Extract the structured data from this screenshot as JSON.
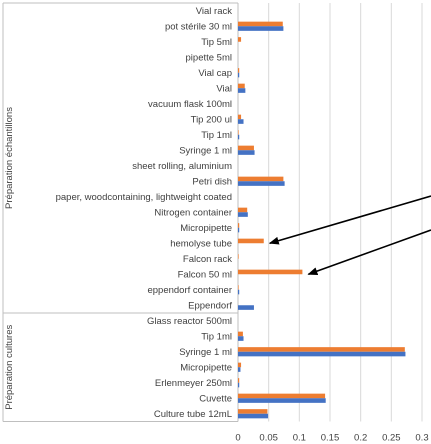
{
  "chart_data": {
    "type": "bar",
    "orientation": "horizontal",
    "title": "",
    "xlabel": "",
    "ylabel": "",
    "xlim": [
      0,
      0.3
    ],
    "xticks": [
      "0",
      "0.05",
      "0.1",
      "0.15",
      "0.2",
      "0.25",
      "0.3"
    ],
    "grid": true,
    "legend": "none",
    "groups": [
      {
        "name": "Préparation échantillons",
        "categories": [
          "Vial rack",
          "pot stérile 30 ml",
          "Tip 5ml",
          "pipette 5ml",
          "Vial cap",
          "Vial",
          "vacuum flask 100ml",
          "Tip 200 ul",
          "Tip 1ml",
          "Syringe 1 ml",
          "sheet rolling, aluminium",
          "Petri dish",
          "paper, woodcontaining, lightweight coated",
          "Nitrogen container",
          "Micropipette",
          "hemolyse tube",
          "Falcon rack",
          "Falcon 50 ml",
          "eppendorf container",
          "Eppendorf"
        ]
      },
      {
        "name": "Préparation cultures",
        "categories": [
          "Glass reactor 500ml",
          "Tip 1ml",
          "Syringe 1 ml",
          "Micropipette",
          "Erlenmeyer 250ml",
          "Cuvette",
          "Culture tube 12mL"
        ]
      }
    ],
    "series": [
      {
        "color": "#ed7d31",
        "values": [
          0,
          0.073,
          0.005,
          0,
          0.002,
          0.011,
          0,
          0.005,
          0.001,
          0.026,
          0,
          0.074,
          0,
          0.015,
          0.002,
          0.042,
          0.001,
          0.105,
          0.001,
          0,
          0,
          0.008,
          0.272,
          0.005,
          0.002,
          0.142,
          0.048
        ]
      },
      {
        "color": "#4472c4",
        "values": [
          0,
          0.074,
          0,
          0,
          0.002,
          0.012,
          0,
          0.009,
          0.002,
          0.027,
          0,
          0.076,
          0,
          0.016,
          0.002,
          0,
          0,
          0,
          0.002,
          0.026,
          0,
          0.009,
          0.273,
          0.004,
          0.002,
          0.143,
          0.049
        ]
      }
    ],
    "annotations": [
      {
        "type": "arrow",
        "target": "hemolyse tube"
      },
      {
        "type": "arrow",
        "target": "Falcon 50 ml"
      }
    ]
  }
}
